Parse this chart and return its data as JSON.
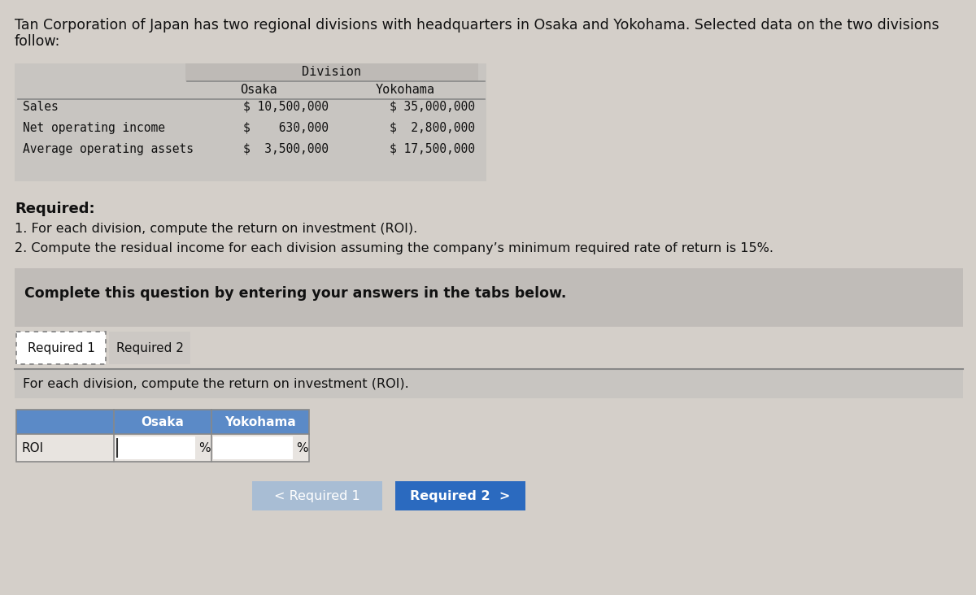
{
  "bg_color": "#d4cfc9",
  "white_area_color": "#e8e4e0",
  "title_text_line1": "Tan Corporation of Japan has two regional divisions with headquarters in Osaka and Yokohama. Selected data on the two divisions",
  "title_text_line2": "follow:",
  "title_fontsize": 12.5,
  "table_bg": "#d0ccc8",
  "table_header_bg": "#c8c5c1",
  "table_div_header": "Division",
  "osaka_col": "Osaka",
  "yokohama_col": "Yokohama",
  "rows": [
    {
      "label": "Sales",
      "osaka": "$ 10,500,000",
      "yokohama": "$ 35,000,000"
    },
    {
      "label": "Net operating income",
      "osaka": "$    630,000",
      "yokohama": "$  2,800,000"
    },
    {
      "label": "Average operating assets",
      "osaka": "$  3,500,000",
      "yokohama": "$ 17,500,000"
    }
  ],
  "required_label": "Required:",
  "req_items": [
    "1. For each division, compute the return on investment (ROI).",
    "2. Compute the residual income for each division assuming the company’s minimum required rate of return is 15%."
  ],
  "complete_box_bg": "#c0bcb8",
  "complete_text": "Complete this question by entering your answers in the tabs below.",
  "tab1_label": "Required 1",
  "tab2_label": "Required 2",
  "tab_area_bg": "#d4cfc9",
  "tab1_bg": "#ffffff",
  "tab2_bg": "#ccc8c4",
  "instruction_text": "For each division, compute the return on investment (ROI).",
  "instruction_bg": "#c8c5c1",
  "roi_table_header_bg": "#5b8ac7",
  "roi_table_header_text_color": "#ffffff",
  "roi_label": "ROI",
  "roi_row_bg": "#e8e4e0",
  "roi_input_bg": "#ffffff",
  "roi_percent_symbol": "%",
  "btn1_label": "< Required 1",
  "btn1_bg": "#a8bdd4",
  "btn1_text_color": "#ffffff",
  "btn2_label": "Required 2  >",
  "btn2_bg": "#2b6abf",
  "btn2_text_color": "#ffffff"
}
